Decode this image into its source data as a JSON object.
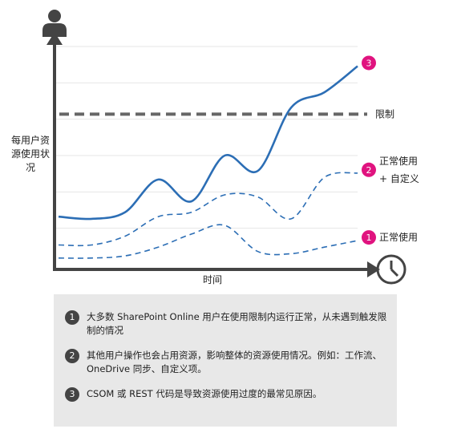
{
  "chart_data": {
    "type": "line",
    "xlabel": "时间",
    "ylabel": "每用户资源使用状况",
    "limit_label": "限制",
    "limit_level": 0.69,
    "series": [
      {
        "name": "正常使用",
        "marker": "1",
        "style": "dashed",
        "values": [
          0.03,
          0.03,
          0.04,
          0.08,
          0.14,
          0.18,
          0.06,
          0.05,
          0.08,
          0.11
        ]
      },
      {
        "name": "正常使用 + 自定义",
        "marker": "2",
        "style": "dashed",
        "values": [
          0.09,
          0.09,
          0.13,
          0.22,
          0.24,
          0.32,
          0.31,
          0.21,
          0.4,
          0.42
        ]
      },
      {
        "name": "",
        "marker": "3",
        "style": "solid",
        "values": [
          0.22,
          0.21,
          0.24,
          0.39,
          0.29,
          0.5,
          0.43,
          0.72,
          0.79,
          0.91
        ]
      }
    ],
    "axis_icons": {
      "y": "user-icon",
      "x": "clock-icon"
    },
    "colors": {
      "axis": "#444444",
      "line": "#2c6eb5",
      "limit": "#666666",
      "marker": "#e0137f"
    }
  },
  "notes": [
    {
      "num": "1",
      "text": "大多数 SharePoint Online 用户在使用限制内运行正常，从未遇到触发限制的情况"
    },
    {
      "num": "2",
      "text": "其他用户操作也会占用资源，影响整体的资源使用情况。例如：工作流、OneDrive 同步、自定义项。"
    },
    {
      "num": "3",
      "text": "CSOM 或 REST 代码是导致资源使用过度的最常见原因。"
    }
  ]
}
